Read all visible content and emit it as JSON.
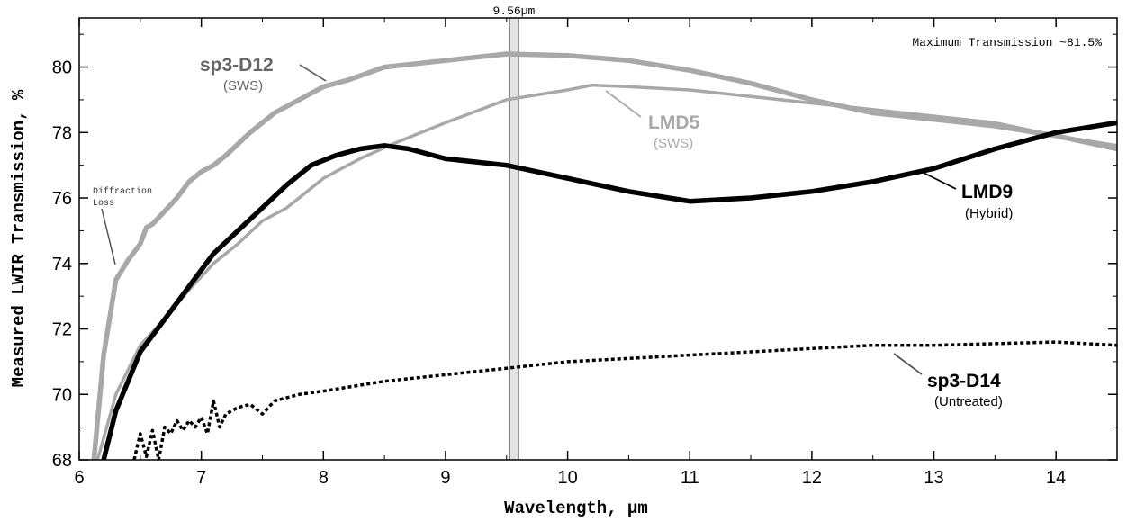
{
  "chart_data": {
    "type": "line",
    "xlabel": "Wavelength, µm",
    "ylabel": "Measured LWIR Transmission, %",
    "xlim": [
      6,
      14.5
    ],
    "ylim": [
      68,
      81.5
    ],
    "x_ticks": [
      "6",
      "7",
      "8",
      "9",
      "10",
      "11",
      "12",
      "13",
      "14"
    ],
    "y_ticks": [
      "68",
      "70",
      "72",
      "74",
      "76",
      "78",
      "80"
    ],
    "grid": false,
    "annotations": {
      "max_transmission": "Maximum Transmission ~81.5%",
      "marker_label": "9.56µm",
      "marker_value": 9.56,
      "diffraction": [
        "Diffraction",
        "Loss"
      ]
    },
    "series": [
      {
        "name": "sp3-D12",
        "label_sub": "(SWS)",
        "color": "#a8a8a8",
        "style": "solid-thick",
        "x": [
          6.12,
          6.2,
          6.3,
          6.4,
          6.5,
          6.55,
          6.6,
          6.7,
          6.8,
          6.9,
          7.0,
          7.1,
          7.2,
          7.4,
          7.6,
          7.8,
          8.0,
          8.2,
          8.5,
          9.0,
          9.5,
          10.0,
          10.5,
          11.0,
          11.5,
          12.0,
          12.5,
          13.0,
          13.5,
          14.0,
          14.5
        ],
        "y": [
          68.0,
          71.2,
          73.5,
          74.1,
          74.6,
          75.1,
          75.2,
          75.6,
          76.0,
          76.5,
          76.8,
          77.0,
          77.3,
          78.0,
          78.6,
          79.0,
          79.4,
          79.6,
          80.0,
          80.2,
          80.4,
          80.35,
          80.2,
          79.9,
          79.5,
          79.0,
          78.6,
          78.4,
          78.2,
          77.9,
          77.5
        ]
      },
      {
        "name": "LMD5",
        "label_sub": "(SWS)",
        "color": "#a8a8a8",
        "style": "solid-thin",
        "x": [
          6.15,
          6.3,
          6.5,
          6.7,
          6.9,
          7.1,
          7.3,
          7.5,
          7.7,
          8.0,
          8.3,
          8.6,
          9.0,
          9.5,
          10.0,
          10.2,
          10.5,
          11.0,
          11.5,
          12.0,
          12.5,
          13.0,
          13.5,
          14.0,
          14.5
        ],
        "y": [
          68.0,
          70.0,
          71.5,
          72.3,
          73.2,
          74.0,
          74.6,
          75.3,
          75.7,
          76.6,
          77.2,
          77.7,
          78.3,
          79.0,
          79.3,
          79.45,
          79.4,
          79.3,
          79.1,
          78.9,
          78.7,
          78.5,
          78.3,
          77.9,
          77.6
        ]
      },
      {
        "name": "LMD9",
        "label_sub": "(Hybrid)",
        "color": "#000000",
        "style": "solid-thick",
        "x": [
          6.2,
          6.3,
          6.5,
          6.7,
          6.9,
          7.1,
          7.3,
          7.5,
          7.7,
          7.9,
          8.1,
          8.3,
          8.5,
          8.7,
          9.0,
          9.5,
          10.0,
          10.5,
          11.0,
          11.5,
          12.0,
          12.5,
          13.0,
          13.5,
          14.0,
          14.5
        ],
        "y": [
          68.0,
          69.5,
          71.3,
          72.3,
          73.3,
          74.3,
          75.0,
          75.7,
          76.4,
          77.0,
          77.3,
          77.5,
          77.6,
          77.5,
          77.2,
          77.0,
          76.6,
          76.2,
          75.9,
          76.0,
          76.2,
          76.5,
          76.9,
          77.5,
          78.0,
          78.3
        ]
      },
      {
        "name": "sp3-D14",
        "label_sub": "(Untreated)",
        "color": "#000000",
        "style": "dotted",
        "x": [
          6.45,
          6.5,
          6.55,
          6.6,
          6.65,
          6.7,
          6.75,
          6.8,
          6.85,
          6.9,
          6.95,
          7.0,
          7.05,
          7.1,
          7.15,
          7.2,
          7.3,
          7.4,
          7.5,
          7.6,
          7.8,
          8.0,
          8.5,
          9.0,
          9.5,
          10.0,
          10.5,
          11.0,
          11.5,
          12.0,
          12.5,
          13.0,
          13.5,
          14.0,
          14.5
        ],
        "y": [
          68.0,
          68.8,
          68.1,
          68.9,
          68.0,
          69.0,
          68.8,
          69.2,
          68.9,
          69.2,
          69.0,
          69.3,
          68.8,
          69.8,
          69.0,
          69.4,
          69.6,
          69.7,
          69.4,
          69.8,
          70.0,
          70.1,
          70.4,
          70.6,
          70.8,
          71.0,
          71.1,
          71.2,
          71.3,
          71.4,
          71.5,
          71.5,
          71.55,
          71.6,
          71.5
        ]
      }
    ]
  }
}
